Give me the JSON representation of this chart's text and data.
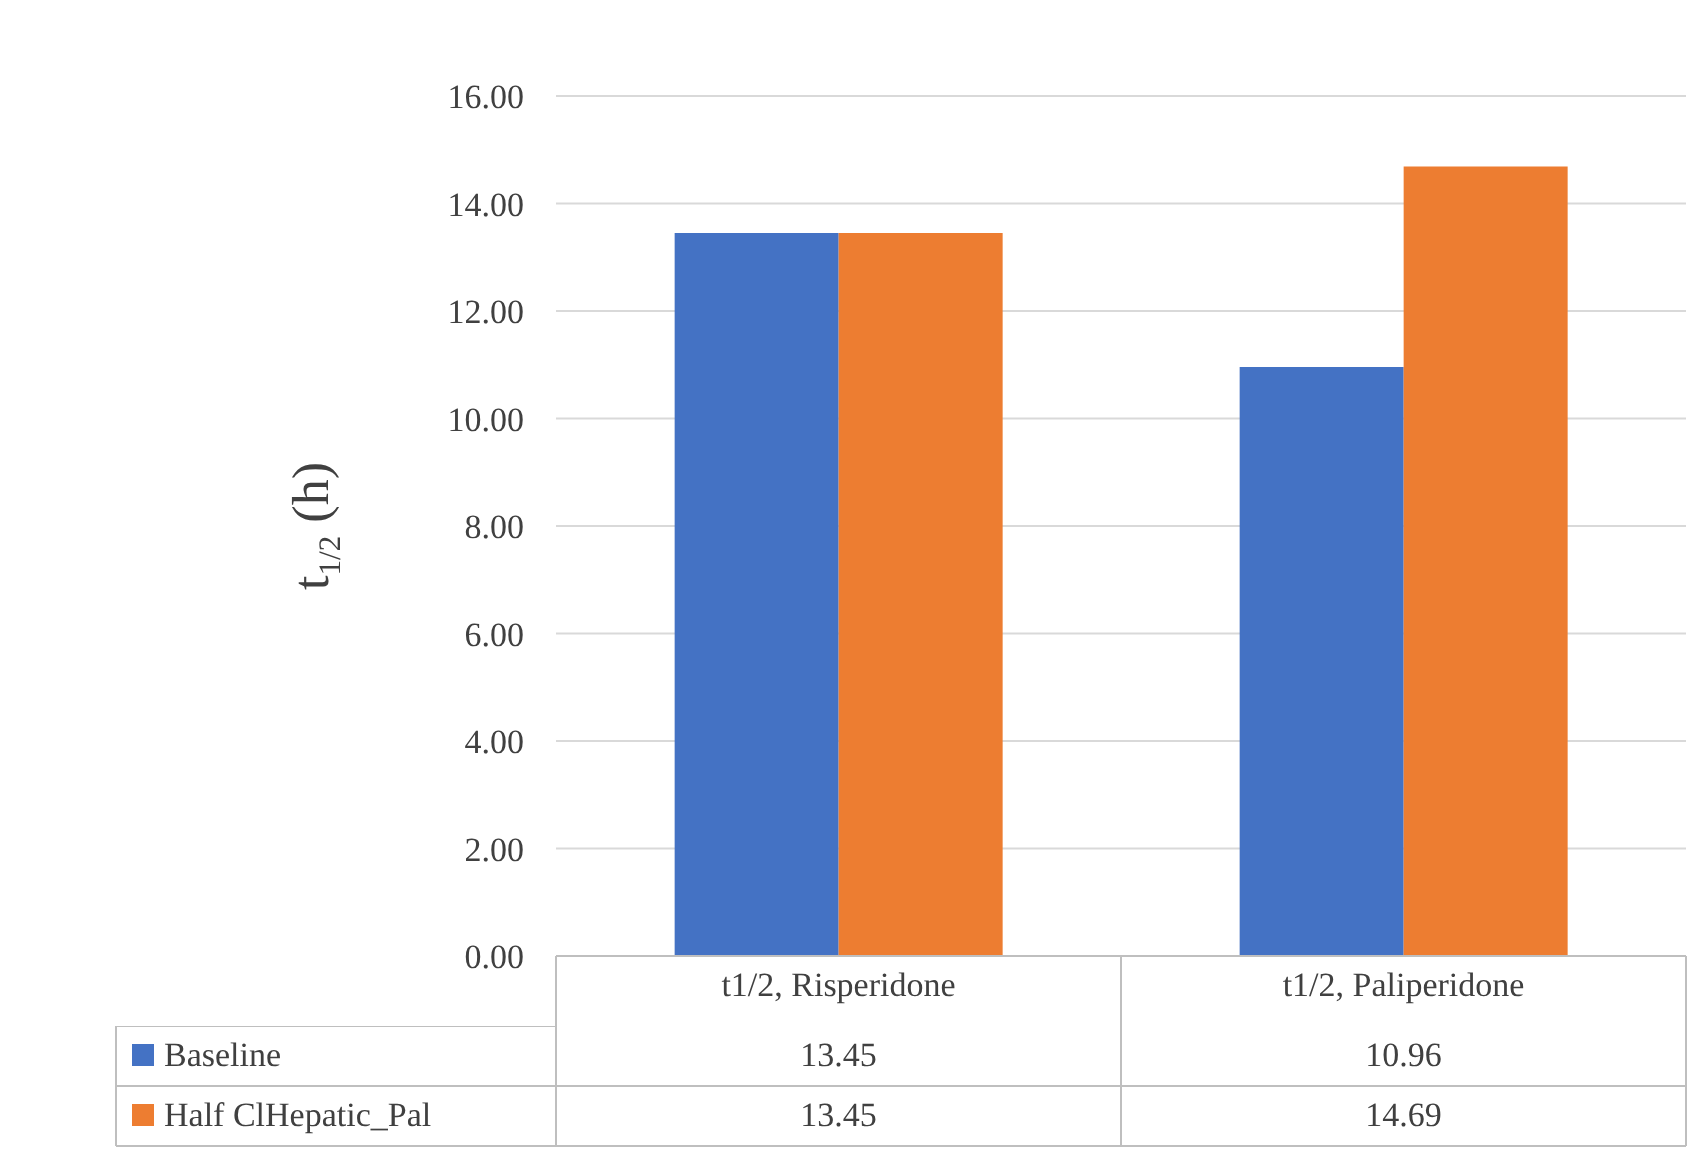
{
  "chart_data": {
    "type": "bar",
    "ylabel": "t$_{1/2}$ (h)",
    "categories": [
      "t1/2, Risperidone",
      "t1/2, Paliperidone"
    ],
    "series": [
      {
        "name": "Baseline",
        "color": "#4472c4",
        "values": [
          13.45,
          10.96
        ]
      },
      {
        "name": "Half ClHepatic_Pal",
        "color": "#ed7d31",
        "values": [
          13.45,
          14.69
        ]
      }
    ],
    "ylim": [
      0,
      16
    ],
    "yticks": [
      {
        "value": 0,
        "label": "0.00"
      },
      {
        "value": 2,
        "label": "2.00"
      },
      {
        "value": 4,
        "label": "4.00"
      },
      {
        "value": 6,
        "label": "6.00"
      },
      {
        "value": 8,
        "label": "8.00"
      },
      {
        "value": 10,
        "label": "10.00"
      },
      {
        "value": 12,
        "label": "12.00"
      },
      {
        "value": 14,
        "label": "14.00"
      },
      {
        "value": 16,
        "label": "16.00"
      }
    ],
    "grid": "y",
    "legend": "bottom",
    "data_labels": true
  }
}
